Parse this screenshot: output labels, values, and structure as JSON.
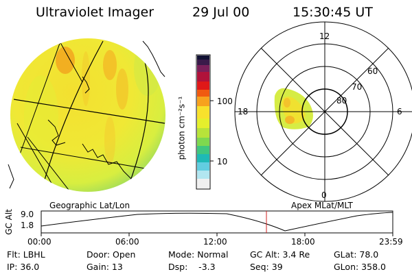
{
  "header": {
    "title": "Ultraviolet Imager",
    "date": "29 Jul 00",
    "time": "15:30:45 UT"
  },
  "colorbar": {
    "units_label": "photon cm⁻²s⁻¹",
    "ticks": [
      "100",
      "10"
    ],
    "colors": [
      "#111133",
      "#3a1a4a",
      "#7a1f5a",
      "#b0123a",
      "#e01818",
      "#f05a10",
      "#f7a21e",
      "#f8e12c",
      "#e5ef2c",
      "#b8e33a",
      "#7fd84f",
      "#40c67f",
      "#1fb9b6",
      "#62cde0",
      "#b2e6f0",
      "#f0f0f0"
    ]
  },
  "polar": {
    "labels": {
      "top": "12",
      "left": "18",
      "right": "6",
      "bottom": "0",
      "r60": "60",
      "r70": "70",
      "r80": "80"
    }
  },
  "panel_labels": {
    "left": "Geographic Lat/Lon",
    "right": "Apex MLat/MLT"
  },
  "altitude_plot": {
    "axis_label": "GC Alt",
    "y_ticks": [
      "9.0",
      "1.8"
    ],
    "x_ticks": [
      "00:00",
      "06:00",
      "12:00",
      "18:00",
      "23:59"
    ],
    "current_marker_color": "#d22020"
  },
  "info": {
    "flt": "Flt: LBHL",
    "ip": "IP: 36.0",
    "door": "Door: Open",
    "gain": "Gain: 13",
    "mode": "Mode: Normal",
    "dsp": "Dsp:    -3.3",
    "gc_alt": "GC Alt: 3.4 Re",
    "seq": "Seq: 39",
    "glat": "GLat: 78.0",
    "glon": "GLon: 358.0"
  }
}
